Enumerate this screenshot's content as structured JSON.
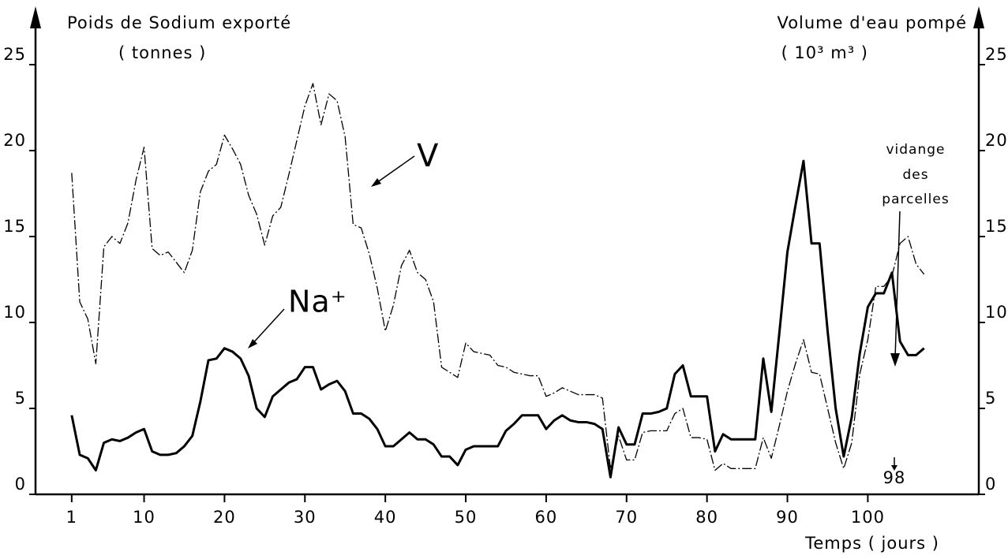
{
  "chart_data": {
    "type": "line",
    "y_label": [
      "Poids de Sodium exporté",
      "( tonnes )"
    ],
    "y2_label": [
      "Volume d'eau pompé",
      "( 10³ m³ )"
    ],
    "x_label": "Temps ( jours )",
    "annotations": [
      "V",
      "Na⁺",
      [
        "vidange",
        "des",
        "parcelles"
      ],
      "98"
    ],
    "x": [
      1,
      2,
      3,
      4,
      5,
      6,
      7,
      8,
      9,
      10,
      11,
      12,
      13,
      14,
      15,
      16,
      17,
      18,
      19,
      20,
      21,
      22,
      23,
      24,
      25,
      26,
      27,
      28,
      29,
      30,
      31,
      32,
      33,
      34,
      35,
      36,
      37,
      38,
      39,
      40,
      41,
      42,
      43,
      44,
      45,
      46,
      47,
      48,
      49,
      50,
      51,
      52,
      53,
      54,
      55,
      56,
      57,
      58,
      59,
      60,
      61,
      62,
      63,
      64,
      65,
      66,
      67,
      68,
      69,
      70,
      71,
      72,
      73,
      74,
      75,
      76,
      77,
      78,
      79,
      80,
      81,
      82,
      83,
      84,
      85,
      86,
      87,
      88,
      89,
      90,
      91,
      92,
      93,
      94,
      95,
      96,
      97,
      98,
      99,
      100,
      101,
      102,
      103,
      104,
      105,
      106,
      107
    ],
    "series": [
      {
        "name": "V",
        "color": "#000000",
        "axis": "y2",
        "values": [
          18.7,
          11.2,
          10.2,
          7.6,
          14.4,
          15.0,
          14.6,
          15.8,
          18.3,
          20.2,
          14.3,
          13.9,
          14.1,
          13.5,
          12.9,
          14.2,
          17.6,
          18.8,
          19.2,
          20.9,
          20.1,
          19.2,
          17.4,
          16.3,
          14.5,
          16.2,
          16.7,
          18.6,
          20.6,
          22.6,
          23.9,
          21.5,
          23.3,
          22.9,
          20.8,
          15.7,
          15.5,
          14.0,
          12.0,
          9.5,
          11.0,
          13.3,
          14.2,
          12.9,
          12.5,
          11.2,
          7.4,
          7.1,
          6.8,
          8.8,
          8.3,
          8.2,
          8.1,
          7.5,
          7.4,
          7.1,
          7.0,
          6.9,
          6.9,
          5.7,
          5.9,
          6.2,
          6.0,
          5.8,
          5.8,
          5.8,
          5.6,
          1.5,
          3.4,
          2.0,
          2.0,
          3.6,
          3.7,
          3.7,
          3.7,
          4.7,
          5.0,
          3.3,
          3.3,
          3.2,
          1.4,
          1.8,
          1.5,
          1.5,
          1.5,
          1.5,
          3.3,
          2.1,
          4.0,
          6.0,
          7.6,
          9.0,
          7.1,
          7.0,
          5.0,
          3.0,
          1.5,
          3.0,
          7.0,
          9.0,
          12.1,
          12.1,
          12.7,
          14.6,
          15.0,
          13.4,
          12.8
        ]
      },
      {
        "name": "Na⁺",
        "color": "#000000",
        "values": [
          4.6,
          2.3,
          2.1,
          1.4,
          3.0,
          3.2,
          3.1,
          3.3,
          3.6,
          3.8,
          2.5,
          2.3,
          2.3,
          2.4,
          2.8,
          3.4,
          5.4,
          7.8,
          7.9,
          8.5,
          8.3,
          7.9,
          6.9,
          5.0,
          4.5,
          5.7,
          6.1,
          6.5,
          6.7,
          7.4,
          7.4,
          6.1,
          6.4,
          6.6,
          6.0,
          4.7,
          4.7,
          4.4,
          3.8,
          2.8,
          2.8,
          3.2,
          3.6,
          3.2,
          3.2,
          2.9,
          2.2,
          2.2,
          1.7,
          2.6,
          2.8,
          2.8,
          2.8,
          2.8,
          3.7,
          4.1,
          4.6,
          4.6,
          4.6,
          3.8,
          4.3,
          4.6,
          4.3,
          4.2,
          4.2,
          4.1,
          3.8,
          1.0,
          3.9,
          2.9,
          2.9,
          4.7,
          4.7,
          4.8,
          5.0,
          7.0,
          7.5,
          5.7,
          5.7,
          5.7,
          2.5,
          3.5,
          3.2,
          3.2,
          3.2,
          3.2,
          7.9,
          4.8,
          9.4,
          14.1,
          16.8,
          19.4,
          14.6,
          14.6,
          9.5,
          5.0,
          2.2,
          4.5,
          8.2,
          10.9,
          11.7,
          11.7,
          12.9,
          8.9,
          8.1,
          8.1,
          8.5
        ]
      }
    ],
    "xlim": [
      -3.5,
      113.8
    ],
    "xticks": [
      1,
      10,
      20,
      30,
      40,
      50,
      60,
      70,
      80,
      90,
      100
    ],
    "ylim": [
      0,
      25
    ],
    "yticks": [
      0,
      5,
      10,
      15,
      20,
      25
    ],
    "y2lim": [
      0,
      25
    ],
    "y2ticks": [
      0,
      5,
      10,
      15,
      20,
      25
    ]
  }
}
